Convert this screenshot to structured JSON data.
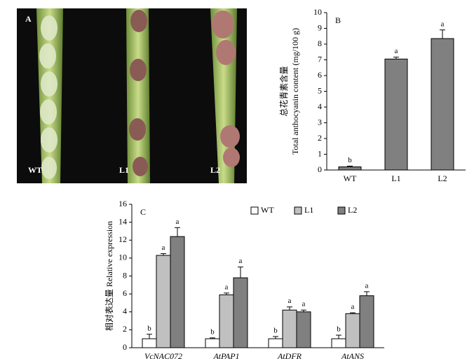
{
  "panel_a": {
    "label": "A",
    "labels": [
      "WT",
      "L1",
      "L2"
    ]
  },
  "chart_data": [
    {
      "type": "bar",
      "panel": "B",
      "y_label": [
        "总花青素含量",
        "Total anthocyanin content (mg/100 g)"
      ],
      "categories": [
        "WT",
        "L1",
        "L2"
      ],
      "values": [
        0.2,
        7.05,
        8.35
      ],
      "errors": [
        0.05,
        0.12,
        0.55
      ],
      "significance": [
        "b",
        "a",
        "a"
      ],
      "color": "#808080",
      "ylim": [
        0,
        10
      ],
      "yticks": [
        0,
        1,
        2,
        3,
        4,
        5,
        6,
        7,
        8,
        9,
        10
      ]
    },
    {
      "type": "grouped_bar",
      "panel": "C",
      "y_label": "相对表达量 Relative expression",
      "categories": [
        "VcNAC072",
        "AtPAP1",
        "AtDFR",
        "AtANS"
      ],
      "series": [
        {
          "name": "WT",
          "color": "#ffffff",
          "values": [
            1.0,
            1.0,
            1.0,
            1.0
          ],
          "errors": [
            0.5,
            0.1,
            0.25,
            0.4
          ],
          "significance": [
            "b",
            "b",
            "b",
            "b"
          ]
        },
        {
          "name": "L1",
          "color": "#c0c0c0",
          "values": [
            10.3,
            5.9,
            4.2,
            3.8
          ],
          "errors": [
            0.2,
            0.2,
            0.35,
            0.1
          ],
          "significance": [
            "a",
            "a",
            "a",
            "a"
          ]
        },
        {
          "name": "L2",
          "color": "#808080",
          "values": [
            12.4,
            7.8,
            4.0,
            5.8
          ],
          "errors": [
            1.0,
            1.2,
            0.2,
            0.45
          ],
          "significance": [
            "a",
            "a",
            "a",
            "a"
          ]
        }
      ],
      "ylim": [
        0,
        16
      ],
      "yticks": [
        0,
        2,
        4,
        6,
        8,
        10,
        12,
        14,
        16
      ]
    }
  ]
}
